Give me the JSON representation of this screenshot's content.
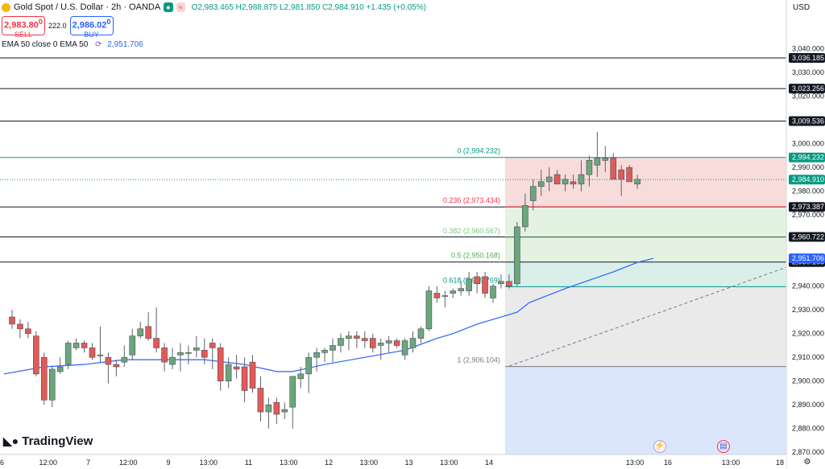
{
  "header": {
    "symbol": "Gold Spot / U.S. Dollar · 2h · OANDA",
    "ohlc": {
      "open": "O2,983.465",
      "high": "H2,988.875",
      "low": "L2,981.850",
      "close": "C2,984.910",
      "change": "+1.435 (+0.05%)"
    }
  },
  "trade": {
    "sell_price": "2,983.80",
    "sell_sup": "0",
    "sell_label": "SELL",
    "spread": "222.0",
    "buy_price": "2,986.02",
    "buy_sup": "0",
    "buy_label": "BUY"
  },
  "indicator": {
    "label": "EMA 50 close 0 EMA 50",
    "value": "2,951.706"
  },
  "branding": {
    "logo": "TradingView"
  },
  "axis_currency": "USD",
  "colors": {
    "up": "#6aa77c",
    "down": "#e25a57",
    "ema": "#2962ff",
    "fib_red": "#f7d6d6",
    "fib_green": "#dff0dc",
    "fib_teal": "#d4ece6",
    "fib_gray": "#e6e6e6",
    "fib_blue": "#d5e1fa"
  },
  "chart_data": {
    "type": "candlestick",
    "ylim": [
      2864,
      3051
    ],
    "y_ticks": [
      "2,870.000",
      "2,880.000",
      "2,890.000",
      "2,900.000",
      "2,910.000",
      "2,920.000",
      "2,930.000",
      "2,940.000",
      "2,950.000",
      "2,960.000",
      "2,970.000",
      "2,980.000",
      "2,990.000",
      "3,000.000",
      "3,010.000",
      "3,020.000",
      "3,030.000",
      "3,040.000"
    ],
    "x_ticks": [
      {
        "i": -0.5,
        "label": "6"
      },
      {
        "i": 4.5,
        "label": "12:00"
      },
      {
        "i": 9.5,
        "label": "7"
      },
      {
        "i": 14.5,
        "label": "12:00"
      },
      {
        "i": 19.5,
        "label": "9"
      },
      {
        "i": 24.5,
        "label": "13:00"
      },
      {
        "i": 29.5,
        "label": "11"
      },
      {
        "i": 34.5,
        "label": "13:00"
      },
      {
        "i": 39.5,
        "label": "12"
      },
      {
        "i": 44.5,
        "label": "13:00"
      },
      {
        "i": 49.5,
        "label": "13"
      },
      {
        "i": 54.5,
        "label": "13:00"
      },
      {
        "i": 59.5,
        "label": "14"
      },
      {
        "i": 64.5,
        "label": "13:00"
      },
      {
        "i": 68.5,
        "label": "16"
      },
      {
        "i": 74.5,
        "label": "13:00"
      },
      {
        "i": 79.5,
        "label": "18"
      }
    ],
    "candles": [
      [
        2927,
        2930,
        2922,
        2924
      ],
      [
        2924,
        2926,
        2918,
        2922
      ],
      [
        2922,
        2925,
        2918,
        2920
      ],
      [
        2919,
        2921,
        2902,
        2903
      ],
      [
        2910,
        2912,
        2890,
        2892
      ],
      [
        2892,
        2906,
        2889,
        2905
      ],
      [
        2904,
        2910,
        2903,
        2906
      ],
      [
        2907,
        2917,
        2905,
        2916
      ],
      [
        2914,
        2918,
        2913,
        2916
      ],
      [
        2916,
        2917,
        2912,
        2914
      ],
      [
        2914,
        2916,
        2909,
        2910
      ],
      [
        2911,
        2923,
        2908,
        2911
      ],
      [
        2910,
        2912,
        2899,
        2907
      ],
      [
        2907,
        2909,
        2902,
        2906
      ],
      [
        2908,
        2915,
        2906,
        2910
      ],
      [
        2911,
        2922,
        2909,
        2919
      ],
      [
        2919,
        2925,
        2918,
        2922
      ],
      [
        2923,
        2929,
        2917,
        2918
      ],
      [
        2918,
        2931,
        2912,
        2914
      ],
      [
        2914,
        2916,
        2904,
        2908
      ],
      [
        2907,
        2914,
        2905,
        2910
      ],
      [
        2911,
        2916,
        2904,
        2912
      ],
      [
        2912,
        2915,
        2907,
        2912
      ],
      [
        2913,
        2919,
        2910,
        2914
      ],
      [
        2913,
        2918,
        2907,
        2910
      ],
      [
        2916,
        2918,
        2905,
        2914
      ],
      [
        2914,
        2916,
        2896,
        2900
      ],
      [
        2900,
        2910,
        2897,
        2907
      ],
      [
        2906,
        2911,
        2901,
        2905
      ],
      [
        2906,
        2910,
        2891,
        2896
      ],
      [
        2908,
        2911,
        2895,
        2897
      ],
      [
        2897,
        2902,
        2883,
        2887
      ],
      [
        2887,
        2893,
        2880,
        2890
      ],
      [
        2891,
        2893,
        2882,
        2886
      ],
      [
        2887,
        2891,
        2884,
        2888
      ],
      [
        2889,
        2901,
        2880,
        2902
      ],
      [
        2901,
        2906,
        2897,
        2903
      ],
      [
        2903,
        2912,
        2895,
        2910
      ],
      [
        2910,
        2914,
        2904,
        2912
      ],
      [
        2912,
        2914,
        2908,
        2913
      ],
      [
        2913,
        2918,
        2908,
        2915
      ],
      [
        2915,
        2920,
        2912,
        2918
      ],
      [
        2918,
        2921,
        2913,
        2919
      ],
      [
        2919,
        2921,
        2914,
        2918
      ],
      [
        2918,
        2921,
        2914,
        2917
      ],
      [
        2918,
        2920,
        2912,
        2914
      ],
      [
        2915,
        2918,
        2909,
        2916
      ],
      [
        2916,
        2919,
        2912,
        2917
      ],
      [
        2917,
        2918,
        2914,
        2915
      ],
      [
        2911,
        2918,
        2909,
        2917
      ],
      [
        2914,
        2921,
        2912,
        2918
      ],
      [
        2918,
        2923,
        2916,
        2922
      ],
      [
        2922,
        2940,
        2921,
        2938
      ],
      [
        2937,
        2940,
        2933,
        2935
      ],
      [
        2936,
        2938,
        2931,
        2936
      ],
      [
        2937,
        2939,
        2935,
        2938
      ],
      [
        2938,
        2942,
        2936,
        2939
      ],
      [
        2938,
        2946,
        2936,
        2943
      ],
      [
        2944,
        2946,
        2937,
        2941
      ],
      [
        2944,
        2946,
        2935,
        2937
      ],
      [
        2935,
        2941,
        2933,
        2940
      ],
      [
        2941,
        2945,
        2939,
        2942
      ],
      [
        2942,
        2945,
        2939,
        2940
      ],
      [
        2941,
        2967,
        2940,
        2965
      ],
      [
        2965,
        2979,
        2963,
        2974
      ],
      [
        2976,
        2985,
        2972,
        2982
      ],
      [
        2982,
        2989,
        2978,
        2984
      ],
      [
        2984,
        2990,
        2980,
        2986
      ],
      [
        2987,
        2989,
        2983,
        2983
      ],
      [
        2983,
        2987,
        2980,
        2985
      ],
      [
        2984,
        2987,
        2981,
        2983
      ],
      [
        2983,
        2993,
        2980,
        2987
      ],
      [
        2987,
        2995,
        2982,
        2993
      ],
      [
        2991,
        3005,
        2986,
        2994
      ],
      [
        2993,
        2999,
        2988,
        2994
      ],
      [
        2994,
        2996,
        2985,
        2985
      ],
      [
        2989,
        2991,
        2978,
        2985
      ],
      [
        2990,
        2991,
        2984,
        2984
      ],
      [
        2983,
        2987,
        2981,
        2985
      ]
    ],
    "candle_shift": -80,
    "ema": [
      [
        -1,
        2903
      ],
      [
        4,
        2906
      ],
      [
        9,
        2907
      ],
      [
        14,
        2909
      ],
      [
        19,
        2909
      ],
      [
        24,
        2909
      ],
      [
        29,
        2907
      ],
      [
        33,
        2904
      ],
      [
        35,
        2904
      ],
      [
        39,
        2907
      ],
      [
        44,
        2910
      ],
      [
        49,
        2913
      ],
      [
        53,
        2918
      ],
      [
        55,
        2920
      ],
      [
        58,
        2924
      ],
      [
        63,
        2929
      ],
      [
        64.5,
        2933
      ],
      [
        69,
        2939
      ],
      [
        75,
        2946
      ],
      [
        78,
        2950
      ],
      [
        80,
        2951.706
      ]
    ],
    "fibonacci": {
      "i_start": 62,
      "levels": [
        {
          "ratio": "0",
          "value": 2994.232,
          "label": "0 (2,994.232)"
        },
        {
          "ratio": "0.236",
          "value": 2973.434,
          "label": "0.236 (2,973.434)"
        },
        {
          "ratio": "0.382",
          "value": 2960.567,
          "label": "0.382 (2,960.567)"
        },
        {
          "ratio": "0.5",
          "value": 2950.168,
          "label": "0.5 (2,950.168)"
        },
        {
          "ratio": "0.618",
          "value": 2939.769,
          "label": "0.618 (2,939.769)"
        },
        {
          "ratio": "1",
          "value": 2906.104,
          "label": "1 (2,906.104)"
        }
      ]
    },
    "horizontal_lines": [
      {
        "value": 3036.185,
        "label": "3,036.185"
      },
      {
        "value": 3023.256,
        "label": "3,023.256"
      },
      {
        "value": 3009.536,
        "label": "3,009.536"
      },
      {
        "value": 2973.387,
        "label": "2,973.387"
      },
      {
        "value": 2960.722,
        "label": "2,960.722"
      },
      {
        "value": 2950.168,
        "label": "2,950.168"
      }
    ],
    "price_markers": [
      {
        "value": 2994.232,
        "label": "2,994.232",
        "color": "#089981"
      },
      {
        "value": 2984.91,
        "label": "2,984.910",
        "color": "#089981"
      },
      {
        "value": 2951.706,
        "label": "2,951.706",
        "color": "#2962ff"
      }
    ],
    "current_price": 2984.91,
    "trendline": [
      [
        62,
        2906.3
      ],
      [
        112,
        2966.5
      ]
    ]
  }
}
